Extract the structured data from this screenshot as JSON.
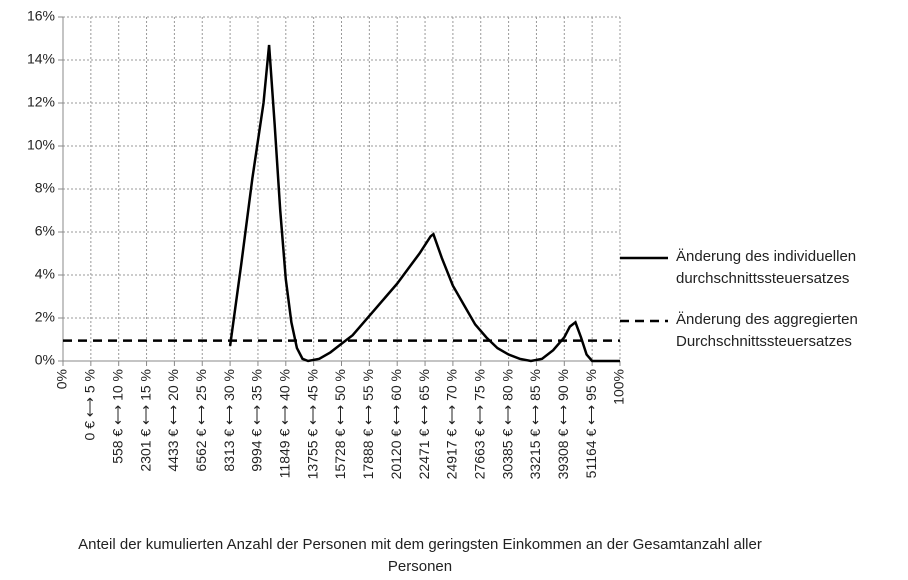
{
  "chart_data": {
    "type": "line",
    "x_label": "Anteil der  kumulierten Anzahl der Personen mit dem geringsten Einkommen an der Gesamtanzahl aller Personen",
    "xlim": [
      0,
      100
    ],
    "xticks": [
      {
        "value": 0,
        "label": "0%"
      },
      {
        "value": 5,
        "label": "0 € ⟷ 5 %"
      },
      {
        "value": 10,
        "label": "558 € ⟷ 10 %"
      },
      {
        "value": 15,
        "label": "2301 € ⟷ 15 %"
      },
      {
        "value": 20,
        "label": "4433 € ⟷ 20 %"
      },
      {
        "value": 25,
        "label": "6562 € ⟷ 25 %"
      },
      {
        "value": 30,
        "label": "8313 € ⟷ 30 %"
      },
      {
        "value": 35,
        "label": "9994 € ⟷ 35 %"
      },
      {
        "value": 40,
        "label": "11849 € ⟷ 40 %"
      },
      {
        "value": 45,
        "label": "13755 € ⟷ 45 %"
      },
      {
        "value": 50,
        "label": "15728 € ⟷ 50 %"
      },
      {
        "value": 55,
        "label": "17888 € ⟷ 55 %"
      },
      {
        "value": 60,
        "label": "20120 € ⟷ 60 %"
      },
      {
        "value": 65,
        "label": "22471 € ⟷ 65 %"
      },
      {
        "value": 70,
        "label": "24917 € ⟷ 70 %"
      },
      {
        "value": 75,
        "label": "27663 € ⟷ 75 %"
      },
      {
        "value": 80,
        "label": "30385 € ⟷ 80 %"
      },
      {
        "value": 85,
        "label": "33215 € ⟷ 85 %"
      },
      {
        "value": 90,
        "label": "39308 € ⟷ 90 %"
      },
      {
        "value": 95,
        "label": "51164 € ⟷ 95 %"
      },
      {
        "value": 100,
        "label": "100%"
      }
    ],
    "ylim": [
      0,
      16
    ],
    "yticks": [
      {
        "value": 0,
        "label": "0%"
      },
      {
        "value": 2,
        "label": "2%"
      },
      {
        "value": 4,
        "label": "4%"
      },
      {
        "value": 6,
        "label": "6%"
      },
      {
        "value": 8,
        "label": "8%"
      },
      {
        "value": 10,
        "label": "10%"
      },
      {
        "value": 12,
        "label": "12%"
      },
      {
        "value": 14,
        "label": "14%"
      },
      {
        "value": 16,
        "label": "16%"
      }
    ],
    "grid": true,
    "legend_position": "right",
    "series": [
      {
        "name": "Änderung des individuellen durchschnittssteuersatzes",
        "color": "#000000",
        "line_style": "solid",
        "x": [
          30,
          32,
          34,
          36,
          37,
          38,
          39,
          40,
          41,
          42,
          43,
          44,
          46,
          48,
          50,
          52,
          54,
          56,
          58,
          60,
          62,
          64,
          66,
          66.5,
          68,
          70,
          72,
          74,
          76,
          78,
          80,
          82,
          84,
          86,
          88,
          90,
          91,
          92,
          93,
          94,
          95,
          100
        ],
        "values": [
          0.7,
          4.5,
          8.5,
          12,
          14.7,
          11,
          7,
          3.8,
          1.8,
          0.6,
          0.1,
          0,
          0.1,
          0.4,
          0.8,
          1.2,
          1.8,
          2.4,
          3.0,
          3.6,
          4.3,
          5.0,
          5.8,
          5.9,
          4.8,
          3.5,
          2.6,
          1.7,
          1.1,
          0.6,
          0.3,
          0.1,
          0,
          0.1,
          0.5,
          1.1,
          1.6,
          1.8,
          1.1,
          0.3,
          0,
          0
        ]
      },
      {
        "name": "Änderung des aggregierten Durchschnittssteuersatzes",
        "color": "#000000",
        "line_style": "dashed",
        "x": [
          0,
          100
        ],
        "values": [
          0.95,
          0.95
        ]
      }
    ]
  }
}
